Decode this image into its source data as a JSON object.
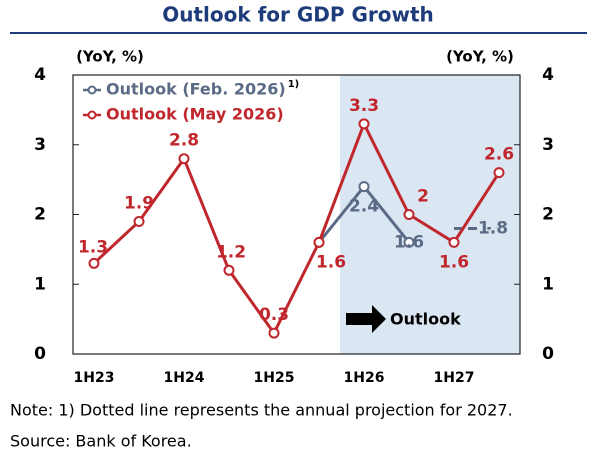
{
  "chart_data": {
    "type": "line",
    "title": "Outlook for GDP Growth",
    "y_unit_label": "(YoY, %)",
    "y2_unit_label": "(YoY, %)",
    "categories": [
      "1H23",
      null,
      "1H24",
      null,
      "1H25",
      null,
      "1H26",
      null,
      "1H27",
      null
    ],
    "series": [
      {
        "name": "Outlook (Feb. 2026)",
        "name_note": "1)",
        "color": "#5b6b86",
        "values": [
          null,
          null,
          null,
          null,
          null,
          1.6,
          2.4,
          1.6,
          null,
          null
        ]
      },
      {
        "name": "Outlook (May 2026)",
        "color": "#c0272d",
        "values": [
          1.3,
          1.9,
          2.8,
          1.2,
          0.3,
          1.6,
          3.3,
          2.0,
          1.6,
          2.6
        ]
      }
    ],
    "annual_projection": {
      "value": 1.8,
      "color": "#5b6b86"
    },
    "ylim": [
      0,
      4
    ],
    "yticks": [
      0,
      1,
      2,
      3,
      4
    ],
    "y2lim": [
      0,
      4
    ],
    "y2ticks": [
      0,
      1,
      2,
      3,
      4
    ],
    "outlook_label": "Outlook",
    "notes": [
      "Note: 1) Dotted line represents the annual projection for 2027.",
      "Source: Bank of Korea."
    ]
  }
}
